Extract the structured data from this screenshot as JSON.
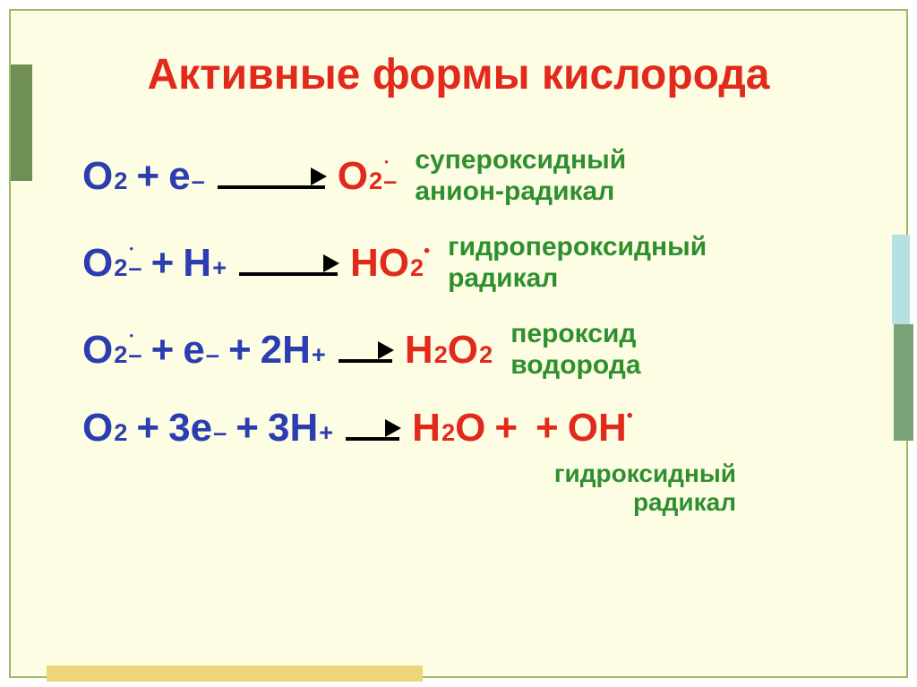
{
  "colors": {
    "main_bg": "#fdfde4",
    "frame_border": "#9db86a",
    "title": "#e12a1c",
    "reactant": "#2b3db0",
    "product": "#e12a1c",
    "label": "#2f8f2f",
    "arrow": "#000000",
    "decor_left": "#6f8f57",
    "decor_right1": "#b7e0e0",
    "decor_right2": "#7aa37a",
    "decor_bottom": "#f0d47a"
  },
  "typography": {
    "title_fontsize": 48,
    "equation_fontsize": 44,
    "label_fontsize": 30,
    "sub_label_fontsize": 28
  },
  "layout": {
    "arrow_width_r1": 120,
    "arrow_width_r2": 110,
    "arrow_width_r3": 60,
    "arrow_width_r4": 60
  },
  "title": "Активные формы кислорода",
  "reactions": [
    {
      "reactants": [
        {
          "base": "O",
          "sub": "2"
        },
        {
          "base": "e",
          "sup": "–"
        }
      ],
      "products": [
        {
          "base": "O",
          "sub": "2",
          "sup": "–",
          "radical": true
        }
      ],
      "label_line1": "супероксидный",
      "label_line2": "анион-радикал"
    },
    {
      "reactants": [
        {
          "base": "O",
          "sub": "2",
          "sup": "–",
          "radical": true
        },
        {
          "base": "H",
          "sup": "+"
        }
      ],
      "products": [
        {
          "base": "HO",
          "sub": "2",
          "radical": true
        }
      ],
      "label_line1": "гидропероксидный",
      "label_line2": "радикал"
    },
    {
      "reactants": [
        {
          "base": "O",
          "sub": "2",
          "sup": "–",
          "radical": true
        },
        {
          "base": "e",
          "sup": "–"
        },
        {
          "coef": "2 ",
          "base": "H",
          "sup": "+"
        }
      ],
      "products": [
        {
          "base": "H",
          "sub": "2"
        },
        {
          "base": "O",
          "sub": "2",
          "joined": true
        }
      ],
      "label_line1": "пероксид",
      "label_line2": "водорода"
    },
    {
      "reactants": [
        {
          "base": "O",
          "sub": "2"
        },
        {
          "coef": "3 ",
          "base": "e",
          "sup": "–"
        },
        {
          "coef": "3 ",
          "base": "H",
          "sup": "+"
        }
      ],
      "products": [
        {
          "base": "H",
          "sub": "2"
        },
        {
          "base": "O",
          "joined": true
        },
        {
          "plus": true
        },
        {
          "base": "OH",
          "radical": true
        }
      ],
      "label_line1": "гидроксидный",
      "label_line2": "радикал",
      "label_below": true
    }
  ]
}
